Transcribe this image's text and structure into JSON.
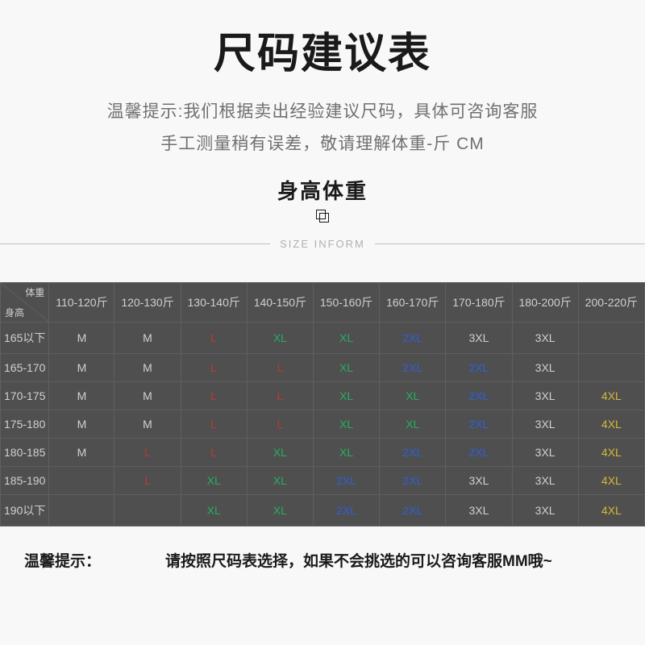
{
  "title": "尺码建议表",
  "subtitle_line1": "温馨提示:我们根据卖出经验建议尺码，具体可咨询客服",
  "subtitle_line2": "手工测量稍有误差，敬请理解体重-斤 CM",
  "section_title": "身高体重",
  "divider_text": "SIZE INFORM",
  "table": {
    "corner_top": "体重",
    "corner_bottom": "身高",
    "columns": [
      "110-120斤",
      "120-130斤",
      "130-140斤",
      "140-150斤",
      "150-160斤",
      "160-170斤",
      "170-180斤",
      "180-200斤",
      "200-220斤"
    ],
    "row_headers": [
      "165以下",
      "165-170",
      "170-175",
      "175-180",
      "180-185",
      "185-190",
      "190以下"
    ],
    "cells": [
      [
        "M",
        "M",
        "L",
        "XL",
        "XL",
        "2XL",
        "3XL",
        "3XL",
        ""
      ],
      [
        "M",
        "M",
        "L",
        "L",
        "XL",
        "2XL",
        "2XL",
        "3XL",
        ""
      ],
      [
        "M",
        "M",
        "L",
        "L",
        "XL",
        "XL",
        "2XL",
        "3XL",
        "4XL"
      ],
      [
        "M",
        "M",
        "L",
        "L",
        "XL",
        "XL",
        "2XL",
        "3XL",
        "4XL"
      ],
      [
        "M",
        "L",
        "L",
        "XL",
        "XL",
        "2XL",
        "2XL",
        "3XL",
        "4XL"
      ],
      [
        "",
        "L",
        "XL",
        "XL",
        "2XL",
        "2XL",
        "3XL",
        "3XL",
        "4XL"
      ],
      [
        "",
        "",
        "XL",
        "XL",
        "2XL",
        "2XL",
        "3XL",
        "3XL",
        "4XL"
      ]
    ],
    "size_colors": {
      "M": "#d0d0d0",
      "L": "#c0392b",
      "XL": "#27ae60",
      "2XL": "#2e5fd9",
      "3XL": "#d0d0d0",
      "4XL": "#d4b93a"
    },
    "background_color": "#4f4f4f",
    "border_color": "#5f5f5f",
    "text_color": "#d0d0d0",
    "fontsize": 14
  },
  "footer": {
    "label": "温馨提示：",
    "text": "请按照尺码表选择，如果不会挑选的可以咨询客服MM哦~"
  },
  "page": {
    "background_color": "#f8f8f8",
    "title_color": "#1a1a1a",
    "subtitle_color": "#707070"
  }
}
